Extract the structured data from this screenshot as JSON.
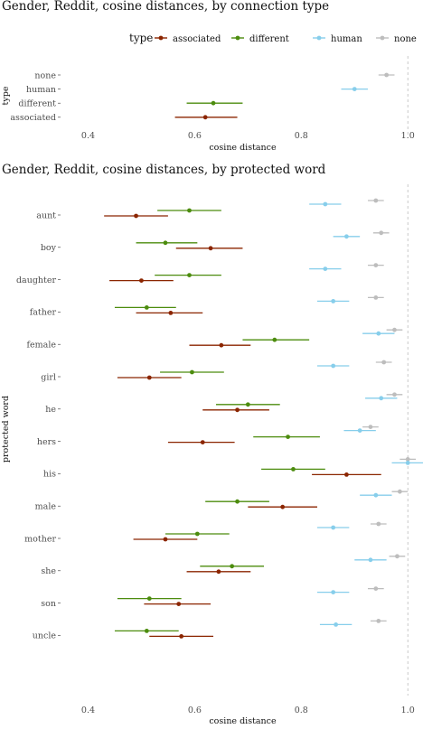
{
  "colors": {
    "associated": "#8B2500",
    "different": "#4C8C0E",
    "human": "#87CEEB",
    "none": "#BDBDBD"
  },
  "legend": {
    "title": "type",
    "items": [
      {
        "key": "associated",
        "label": "associated"
      },
      {
        "key": "different",
        "label": "different"
      },
      {
        "key": "human",
        "label": "human"
      },
      {
        "key": "none",
        "label": "none"
      }
    ]
  },
  "chart_data": [
    {
      "type": "scatter",
      "title": "Gender, Reddit,  cosine distances, by connection type",
      "xlabel": "cosine distance",
      "ylabel": "type",
      "xlim": [
        0.35,
        1.02
      ],
      "xticks": [
        0.4,
        0.6,
        0.8,
        1.0
      ],
      "xtick_labels": [
        "0.4",
        "0.6",
        "0.8",
        "1.0"
      ],
      "reference_line": 1.0,
      "categories": [
        "none",
        "human",
        "different",
        "associated"
      ],
      "points": [
        {
          "category": "none",
          "type": "none",
          "x": 0.96,
          "lo": 0.945,
          "hi": 0.975
        },
        {
          "category": "human",
          "type": "human",
          "x": 0.9,
          "lo": 0.875,
          "hi": 0.925
        },
        {
          "category": "different",
          "type": "different",
          "x": 0.635,
          "lo": 0.585,
          "hi": 0.69
        },
        {
          "category": "associated",
          "type": "associated",
          "x": 0.62,
          "lo": 0.563,
          "hi": 0.68
        }
      ]
    },
    {
      "type": "scatter",
      "title": "Gender, Reddit, cosine distances, by protected word",
      "xlabel": "cosine distance",
      "ylabel": "protected word",
      "xlim": [
        0.35,
        1.02
      ],
      "xticks": [
        0.4,
        0.6,
        0.8,
        1.0
      ],
      "xtick_labels": [
        "0.4",
        "0.6",
        "0.8",
        "1.0"
      ],
      "reference_line": 1.0,
      "categories": [
        "aunt",
        "boy",
        "daughter",
        "father",
        "female",
        "girl",
        "he",
        "hers",
        "his",
        "male",
        "mother",
        "she",
        "son",
        "uncle"
      ],
      "points": [
        {
          "category": "aunt",
          "type": "none",
          "x": 0.94,
          "lo": 0.925,
          "hi": 0.955
        },
        {
          "category": "aunt",
          "type": "human",
          "x": 0.845,
          "lo": 0.815,
          "hi": 0.875
        },
        {
          "category": "aunt",
          "type": "different",
          "x": 0.59,
          "lo": 0.53,
          "hi": 0.65
        },
        {
          "category": "aunt",
          "type": "associated",
          "x": 0.49,
          "lo": 0.43,
          "hi": 0.55
        },
        {
          "category": "boy",
          "type": "none",
          "x": 0.95,
          "lo": 0.935,
          "hi": 0.965
        },
        {
          "category": "boy",
          "type": "human",
          "x": 0.885,
          "lo": 0.86,
          "hi": 0.91
        },
        {
          "category": "boy",
          "type": "different",
          "x": 0.545,
          "lo": 0.49,
          "hi": 0.605
        },
        {
          "category": "boy",
          "type": "associated",
          "x": 0.63,
          "lo": 0.565,
          "hi": 0.69
        },
        {
          "category": "daughter",
          "type": "none",
          "x": 0.94,
          "lo": 0.925,
          "hi": 0.955
        },
        {
          "category": "daughter",
          "type": "human",
          "x": 0.845,
          "lo": 0.815,
          "hi": 0.875
        },
        {
          "category": "daughter",
          "type": "different",
          "x": 0.59,
          "lo": 0.525,
          "hi": 0.65
        },
        {
          "category": "daughter",
          "type": "associated",
          "x": 0.5,
          "lo": 0.44,
          "hi": 0.56
        },
        {
          "category": "father",
          "type": "none",
          "x": 0.94,
          "lo": 0.925,
          "hi": 0.955
        },
        {
          "category": "father",
          "type": "human",
          "x": 0.86,
          "lo": 0.83,
          "hi": 0.89
        },
        {
          "category": "father",
          "type": "different",
          "x": 0.51,
          "lo": 0.45,
          "hi": 0.565
        },
        {
          "category": "father",
          "type": "associated",
          "x": 0.555,
          "lo": 0.49,
          "hi": 0.615
        },
        {
          "category": "female",
          "type": "none",
          "x": 0.975,
          "lo": 0.96,
          "hi": 0.99
        },
        {
          "category": "female",
          "type": "human",
          "x": 0.945,
          "lo": 0.915,
          "hi": 0.975
        },
        {
          "category": "female",
          "type": "different",
          "x": 0.75,
          "lo": 0.69,
          "hi": 0.815
        },
        {
          "category": "female",
          "type": "associated",
          "x": 0.65,
          "lo": 0.59,
          "hi": 0.705
        },
        {
          "category": "girl",
          "type": "none",
          "x": 0.955,
          "lo": 0.94,
          "hi": 0.97
        },
        {
          "category": "girl",
          "type": "human",
          "x": 0.86,
          "lo": 0.83,
          "hi": 0.89
        },
        {
          "category": "girl",
          "type": "different",
          "x": 0.595,
          "lo": 0.535,
          "hi": 0.655
        },
        {
          "category": "girl",
          "type": "associated",
          "x": 0.515,
          "lo": 0.455,
          "hi": 0.575
        },
        {
          "category": "he",
          "type": "none",
          "x": 0.975,
          "lo": 0.96,
          "hi": 0.99
        },
        {
          "category": "he",
          "type": "human",
          "x": 0.95,
          "lo": 0.92,
          "hi": 0.98
        },
        {
          "category": "he",
          "type": "different",
          "x": 0.7,
          "lo": 0.64,
          "hi": 0.76
        },
        {
          "category": "he",
          "type": "associated",
          "x": 0.68,
          "lo": 0.615,
          "hi": 0.74
        },
        {
          "category": "hers",
          "type": "none",
          "x": 0.93,
          "lo": 0.915,
          "hi": 0.945
        },
        {
          "category": "hers",
          "type": "human",
          "x": 0.91,
          "lo": 0.88,
          "hi": 0.94
        },
        {
          "category": "hers",
          "type": "different",
          "x": 0.775,
          "lo": 0.71,
          "hi": 0.835
        },
        {
          "category": "hers",
          "type": "associated",
          "x": 0.615,
          "lo": 0.55,
          "hi": 0.675
        },
        {
          "category": "his",
          "type": "none",
          "x": 1.0,
          "lo": 0.985,
          "hi": 1.015
        },
        {
          "category": "his",
          "type": "human",
          "x": 1.0,
          "lo": 0.97,
          "hi": 1.03
        },
        {
          "category": "his",
          "type": "different",
          "x": 0.785,
          "lo": 0.725,
          "hi": 0.845
        },
        {
          "category": "his",
          "type": "associated",
          "x": 0.885,
          "lo": 0.82,
          "hi": 0.95
        },
        {
          "category": "male",
          "type": "none",
          "x": 0.985,
          "lo": 0.97,
          "hi": 1.0
        },
        {
          "category": "male",
          "type": "human",
          "x": 0.94,
          "lo": 0.91,
          "hi": 0.97
        },
        {
          "category": "male",
          "type": "different",
          "x": 0.68,
          "lo": 0.62,
          "hi": 0.74
        },
        {
          "category": "male",
          "type": "associated",
          "x": 0.765,
          "lo": 0.7,
          "hi": 0.83
        },
        {
          "category": "mother",
          "type": "none",
          "x": 0.945,
          "lo": 0.93,
          "hi": 0.96
        },
        {
          "category": "mother",
          "type": "human",
          "x": 0.86,
          "lo": 0.83,
          "hi": 0.89
        },
        {
          "category": "mother",
          "type": "different",
          "x": 0.605,
          "lo": 0.545,
          "hi": 0.665
        },
        {
          "category": "mother",
          "type": "associated",
          "x": 0.545,
          "lo": 0.485,
          "hi": 0.605
        },
        {
          "category": "she",
          "type": "none",
          "x": 0.98,
          "lo": 0.965,
          "hi": 0.995
        },
        {
          "category": "she",
          "type": "human",
          "x": 0.93,
          "lo": 0.9,
          "hi": 0.96
        },
        {
          "category": "she",
          "type": "different",
          "x": 0.67,
          "lo": 0.61,
          "hi": 0.73
        },
        {
          "category": "she",
          "type": "associated",
          "x": 0.645,
          "lo": 0.585,
          "hi": 0.705
        },
        {
          "category": "son",
          "type": "none",
          "x": 0.94,
          "lo": 0.925,
          "hi": 0.955
        },
        {
          "category": "son",
          "type": "human",
          "x": 0.86,
          "lo": 0.83,
          "hi": 0.89
        },
        {
          "category": "son",
          "type": "different",
          "x": 0.515,
          "lo": 0.455,
          "hi": 0.575
        },
        {
          "category": "son",
          "type": "associated",
          "x": 0.57,
          "lo": 0.505,
          "hi": 0.63
        },
        {
          "category": "uncle",
          "type": "none",
          "x": 0.945,
          "lo": 0.93,
          "hi": 0.96
        },
        {
          "category": "uncle",
          "type": "human",
          "x": 0.865,
          "lo": 0.835,
          "hi": 0.895
        },
        {
          "category": "uncle",
          "type": "different",
          "x": 0.51,
          "lo": 0.45,
          "hi": 0.57
        },
        {
          "category": "uncle",
          "type": "associated",
          "x": 0.575,
          "lo": 0.515,
          "hi": 0.635
        }
      ]
    }
  ]
}
